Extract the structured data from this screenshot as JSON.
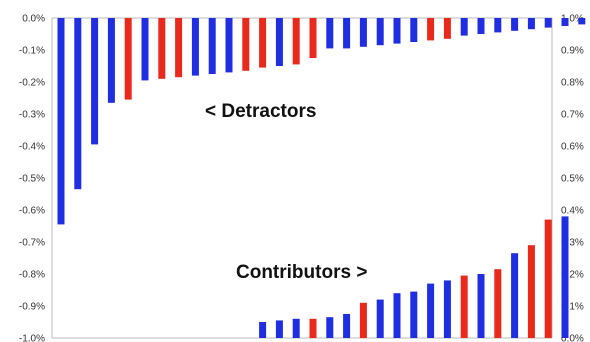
{
  "chart_data": [
    {
      "type": "bar",
      "name": "detractors",
      "axis": "left",
      "ylim": [
        -1.0,
        0.0
      ],
      "yticks": [
        "0.0%",
        "-0.1%",
        "-0.2%",
        "-0.3%",
        "-0.4%",
        "-0.5%",
        "-0.6%",
        "-0.7%",
        "-0.8%",
        "-0.9%",
        "-1.0%"
      ],
      "annotation": "< Detractors",
      "values": [
        -0.645,
        -0.535,
        -0.395,
        -0.265,
        -0.255,
        -0.195,
        -0.19,
        -0.185,
        -0.18,
        -0.175,
        -0.17,
        -0.165,
        -0.155,
        -0.15,
        -0.145,
        -0.125,
        -0.095,
        -0.095,
        -0.09,
        -0.085,
        -0.08,
        -0.075,
        -0.07,
        -0.065,
        -0.055,
        -0.05,
        -0.045,
        -0.04,
        -0.035,
        -0.03,
        -0.025,
        -0.02,
        -0.015,
        -0.015
      ],
      "colors": [
        "#1f2ee0",
        "#1f2ee0",
        "#1f2ee0",
        "#1f2ee0",
        "#e8291c",
        "#1f2ee0",
        "#e8291c",
        "#e8291c",
        "#1f2ee0",
        "#1f2ee0",
        "#1f2ee0",
        "#e8291c",
        "#e8291c",
        "#1f2ee0",
        "#e8291c",
        "#e8291c",
        "#1f2ee0",
        "#1f2ee0",
        "#1f2ee0",
        "#1f2ee0",
        "#1f2ee0",
        "#1f2ee0",
        "#e8291c",
        "#e8291c",
        "#1f2ee0",
        "#1f2ee0",
        "#1f2ee0",
        "#1f2ee0",
        "#1f2ee0",
        "#1f2ee0",
        "#1f2ee0",
        "#1f2ee0",
        "#e8291c",
        "#1f2ee0"
      ]
    },
    {
      "type": "bar",
      "name": "contributors",
      "axis": "right",
      "ylim": [
        0.0,
        1.0
      ],
      "yticks": [
        "1.0%",
        "0.9%",
        "0.8%",
        "0.7%",
        "0.6%",
        "0.5%",
        "0.4%",
        "0.3%",
        "0.2%",
        "0.1%",
        "0.0%"
      ],
      "annotation": "Contributors >",
      "start_index": 12,
      "values": [
        0.05,
        0.055,
        0.06,
        0.06,
        0.065,
        0.075,
        0.11,
        0.12,
        0.14,
        0.145,
        0.17,
        0.18,
        0.195,
        0.2,
        0.215,
        0.265,
        0.29,
        0.37,
        0.38
      ],
      "colors": [
        "#1f2ee0",
        "#1f2ee0",
        "#1f2ee0",
        "#e8291c",
        "#1f2ee0",
        "#1f2ee0",
        "#e8291c",
        "#1f2ee0",
        "#1f2ee0",
        "#1f2ee0",
        "#1f2ee0",
        "#1f2ee0",
        "#e8291c",
        "#1f2ee0",
        "#e8291c",
        "#1f2ee0",
        "#e8291c",
        "#e8291c",
        "#1f2ee0"
      ]
    }
  ]
}
